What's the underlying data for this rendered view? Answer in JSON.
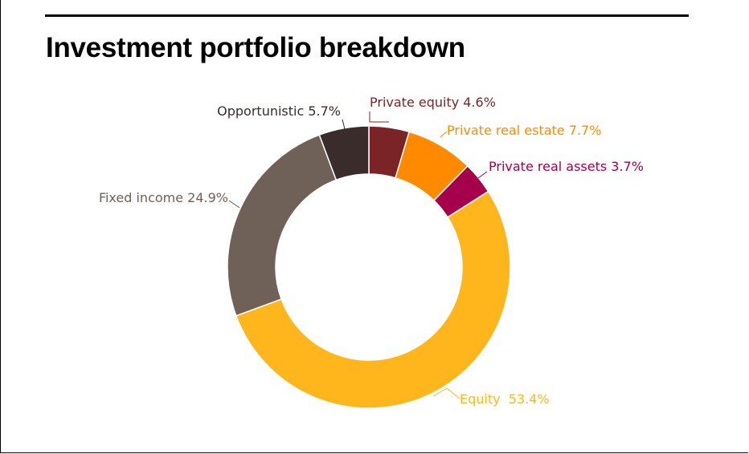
{
  "title": "Investment portfolio breakdown",
  "chart_data": {
    "type": "pie",
    "donut": true,
    "title": "Investment portfolio breakdown",
    "slices": [
      {
        "name": "Private equity",
        "label": "Private equity 4.6%",
        "value": 4.6,
        "color": "#7b2427"
      },
      {
        "name": "Private real estate",
        "label": "Private real estate 7.7%",
        "value": 7.7,
        "color": "#ff8a00"
      },
      {
        "name": "Private real assets",
        "label": "Private real assets 3.7%",
        "value": 3.7,
        "color": "#a6004c"
      },
      {
        "name": "Equity",
        "label": "Equity  53.4%",
        "value": 53.4,
        "color": "#ffb61c"
      },
      {
        "name": "Fixed income",
        "label": "Fixed income 24.9%",
        "value": 24.9,
        "color": "#6f6158"
      },
      {
        "name": "Opportunistic",
        "label": "Opportunistic 5.7%",
        "value": 5.7,
        "color": "#3a2c2a"
      }
    ],
    "label_colors": {
      "Private equity": "#7b2427",
      "Private real estate": "#ff8a00",
      "Private real assets": "#a6004c",
      "Equity": "#ffb61c",
      "Fixed income": "#6f6158",
      "Opportunistic": "#3a2c2a"
    }
  }
}
